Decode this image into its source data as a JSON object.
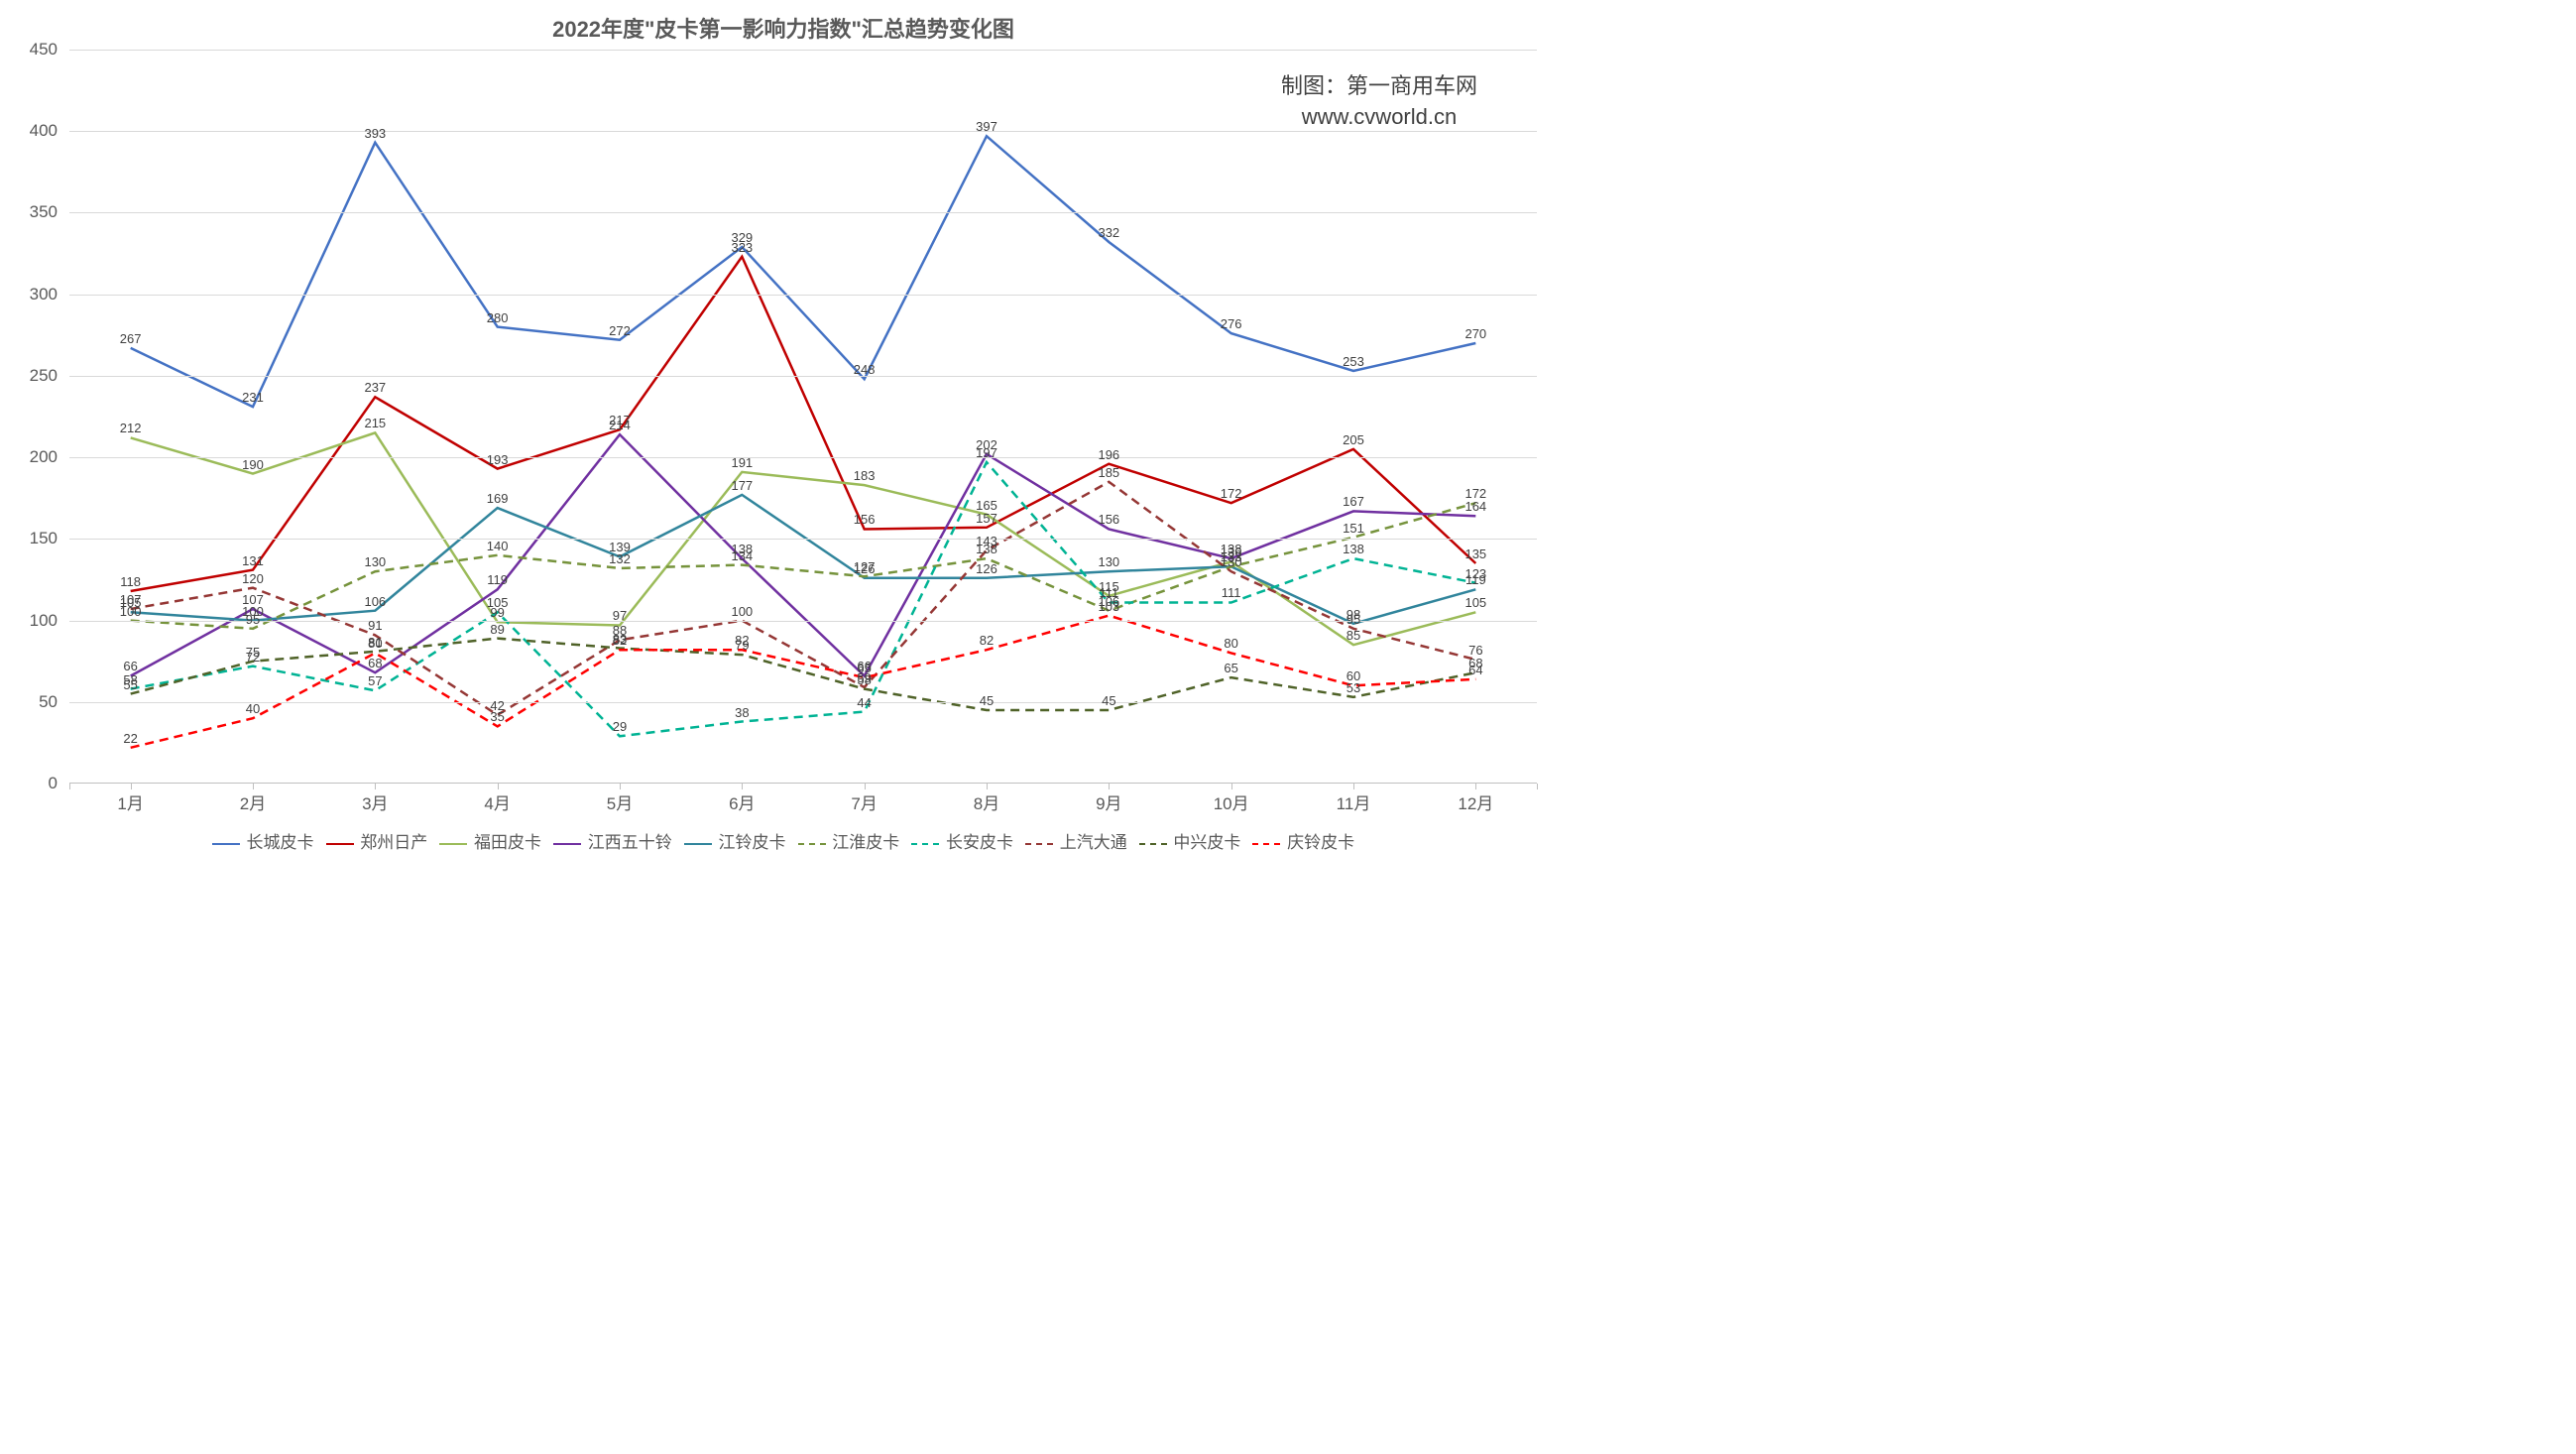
{
  "chart": {
    "type": "line",
    "title": "2022年度\"皮卡第一影响力指数\"汇总趋势变化图",
    "attribution_line1": "制图：第一商用车网",
    "attribution_line2": "www.cvworld.cn",
    "background_color": "#ffffff",
    "grid_color": "#d9d9d9",
    "axis_color": "#bfbfbf",
    "title_fontsize": 22,
    "label_fontsize": 17,
    "datalabel_fontsize": 13,
    "ylim": [
      0,
      450
    ],
    "ytick_step": 50,
    "yticks": [
      0,
      50,
      100,
      150,
      200,
      250,
      300,
      350,
      400,
      450
    ],
    "categories": [
      "1月",
      "2月",
      "3月",
      "4月",
      "5月",
      "6月",
      "7月",
      "8月",
      "9月",
      "10月",
      "11月",
      "12月"
    ],
    "line_width": 2.5,
    "marker_style": "none",
    "series": [
      {
        "name": "长城皮卡",
        "color": "#4472c4",
        "dash": "solid",
        "values": [
          267,
          231,
          393,
          280,
          272,
          329,
          248,
          397,
          332,
          276,
          253,
          270
        ]
      },
      {
        "name": "郑州日产",
        "color": "#c00000",
        "dash": "solid",
        "values": [
          118,
          131,
          237,
          193,
          217,
          323,
          156,
          157,
          196,
          172,
          205,
          135
        ]
      },
      {
        "name": "福田皮卡",
        "color": "#9bbb59",
        "dash": "solid",
        "values": [
          212,
          190,
          215,
          99,
          97,
          191,
          183,
          165,
          115,
          136,
          85,
          105
        ]
      },
      {
        "name": "江西五十铃",
        "color": "#7030a0",
        "dash": "solid",
        "values": [
          66,
          107,
          68,
          119,
          214,
          138,
          66,
          202,
          156,
          138,
          167,
          164
        ]
      },
      {
        "name": "江铃皮卡",
        "color": "#31859c",
        "dash": "solid",
        "values": [
          105,
          100,
          106,
          169,
          139,
          177,
          126,
          126,
          130,
          133,
          98,
          119
        ]
      },
      {
        "name": "江淮皮卡",
        "color": "#76933c",
        "dash": "dashed",
        "values": [
          100,
          95,
          130,
          140,
          132,
          134,
          127,
          138,
          106,
          133,
          151,
          172
        ]
      },
      {
        "name": "长安皮卡",
        "color": "#00b394",
        "dash": "dashed",
        "values": [
          58,
          72,
          57,
          105,
          29,
          38,
          44,
          197,
          111,
          111,
          138,
          123
        ]
      },
      {
        "name": "上汽大通",
        "color": "#953735",
        "dash": "dashed",
        "values": [
          107,
          120,
          91,
          42,
          88,
          100,
          59,
          143,
          185,
          130,
          95,
          76
        ]
      },
      {
        "name": "中兴皮卡",
        "color": "#4f6228",
        "dash": "dashed",
        "values": [
          55,
          75,
          81,
          89,
          83,
          79,
          58,
          45,
          45,
          65,
          53,
          68
        ]
      },
      {
        "name": "庆铃皮卡",
        "color": "#ff0000",
        "dash": "dashed",
        "values": [
          22,
          40,
          80,
          35,
          82,
          82,
          65,
          82,
          103,
          80,
          60,
          64
        ]
      }
    ]
  }
}
